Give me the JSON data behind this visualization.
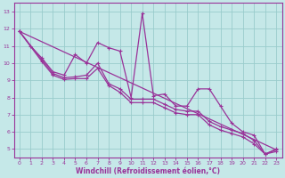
{
  "xlabel": "Windchill (Refroidissement éolien,°C)",
  "xlim": [
    -0.5,
    23.5
  ],
  "ylim": [
    4.5,
    13.5
  ],
  "yticks": [
    5,
    6,
    7,
    8,
    9,
    10,
    11,
    12,
    13
  ],
  "xticks": [
    0,
    1,
    2,
    3,
    4,
    5,
    6,
    7,
    8,
    9,
    10,
    11,
    12,
    13,
    14,
    15,
    16,
    17,
    18,
    19,
    20,
    21,
    22,
    23
  ],
  "bg_color": "#c5e8e8",
  "grid_color": "#99cccc",
  "line_color": "#993399",
  "line_width": 0.9,
  "marker_size": 3,
  "trend_x": [
    0,
    23
  ],
  "trend_y": [
    11.85,
    4.95
  ],
  "line1_x": [
    0,
    1,
    2,
    3,
    4,
    5,
    6,
    7,
    8,
    9,
    10,
    11,
    12,
    13,
    14,
    15,
    16,
    17,
    18,
    19,
    20,
    21,
    22,
    23
  ],
  "line1_y": [
    11.85,
    11.0,
    10.3,
    9.5,
    9.3,
    10.5,
    10.0,
    11.2,
    10.9,
    10.7,
    8.0,
    12.9,
    8.1,
    8.2,
    7.5,
    7.5,
    8.5,
    8.5,
    7.5,
    6.5,
    6.0,
    5.8,
    4.7,
    5.0
  ],
  "line2_x": [
    0,
    2,
    3,
    4,
    5,
    6,
    7,
    8,
    9,
    10,
    11,
    12,
    13,
    14,
    15,
    16,
    17,
    18,
    19,
    20,
    21,
    22,
    23
  ],
  "line2_y": [
    11.85,
    10.2,
    9.4,
    9.15,
    9.2,
    9.3,
    10.0,
    8.8,
    8.5,
    7.9,
    7.9,
    7.9,
    7.6,
    7.3,
    7.2,
    7.2,
    6.6,
    6.3,
    6.1,
    5.9,
    5.5,
    4.7,
    4.95
  ],
  "line3_x": [
    0,
    2,
    3,
    4,
    5,
    6,
    7,
    8,
    9,
    10,
    11,
    12,
    13,
    14,
    15,
    16,
    17,
    18,
    19,
    20,
    21,
    22,
    23
  ],
  "line3_y": [
    11.85,
    10.1,
    9.3,
    9.05,
    9.1,
    9.1,
    9.7,
    8.7,
    8.3,
    7.7,
    7.7,
    7.7,
    7.4,
    7.1,
    7.0,
    7.0,
    6.4,
    6.1,
    5.9,
    5.7,
    5.3,
    4.7,
    4.85
  ]
}
